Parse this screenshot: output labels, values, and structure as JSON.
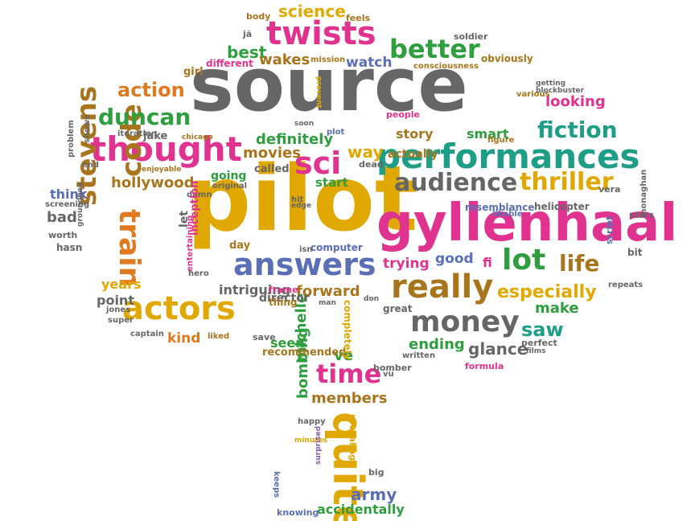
{
  "palette": {
    "gray": "#666666",
    "pink": "#e0338f",
    "gold": "#e0a800",
    "green": "#2e9e3e",
    "teal": "#1f9e87",
    "blue": "#5a6fb5",
    "orange": "#e07a1f",
    "brown": "#a8751c",
    "red": "#d94a30",
    "purple": "#8a5aab",
    "lightgray": "#999999"
  },
  "words": [
    {
      "text": "source",
      "color": "gray"
    },
    {
      "text": "pilot",
      "color": "gold"
    },
    {
      "text": "gyllenhaal",
      "color": "pink"
    },
    {
      "text": "performances",
      "color": "teal"
    },
    {
      "text": "thought",
      "color": "pink"
    },
    {
      "text": "twists",
      "color": "pink"
    },
    {
      "text": "answers",
      "color": "blue"
    },
    {
      "text": "actors",
      "color": "gold"
    },
    {
      "text": "really",
      "color": "brown"
    },
    {
      "text": "money",
      "color": "gray"
    },
    {
      "text": "audience",
      "color": "gray"
    },
    {
      "text": "thriller",
      "color": "gold"
    },
    {
      "text": "better",
      "color": "green"
    },
    {
      "text": "fiction",
      "color": "teal"
    },
    {
      "text": "sci",
      "color": "pink"
    },
    {
      "text": "lot",
      "color": "green"
    },
    {
      "text": "life",
      "color": "brown"
    },
    {
      "text": "quite",
      "color": "gold"
    },
    {
      "text": "time",
      "color": "pink"
    },
    {
      "text": "code",
      "color": "brown"
    },
    {
      "text": "train",
      "color": "orange"
    },
    {
      "text": "stevens",
      "color": "brown"
    },
    {
      "text": "duncan",
      "color": "green"
    },
    {
      "text": "action",
      "color": "orange"
    },
    {
      "text": "especially",
      "color": "gold"
    },
    {
      "text": "hollywood",
      "color": "brown"
    },
    {
      "text": "science",
      "color": "gold"
    },
    {
      "text": "saw",
      "color": "teal"
    },
    {
      "text": "glance",
      "color": "gray"
    },
    {
      "text": "ending",
      "color": "green"
    },
    {
      "text": "forward",
      "color": "brown"
    },
    {
      "text": "intriguing",
      "color": "gray"
    },
    {
      "text": "definitely",
      "color": "green"
    },
    {
      "text": "way",
      "color": "gold"
    },
    {
      "text": "movies",
      "color": "brown"
    },
    {
      "text": "make",
      "color": "green"
    },
    {
      "text": "michelle",
      "color": "green"
    },
    {
      "text": "bombing",
      "color": "green"
    },
    {
      "text": "members",
      "color": "brown"
    },
    {
      "text": "army",
      "color": "blue"
    },
    {
      "text": "accidentally",
      "color": "green"
    },
    {
      "text": "kind",
      "color": "orange"
    },
    {
      "text": "trying",
      "color": "pink"
    },
    {
      "text": "good",
      "color": "blue"
    },
    {
      "text": "fi",
      "color": "pink"
    },
    {
      "text": "looking",
      "color": "pink"
    },
    {
      "text": "smart",
      "color": "green"
    },
    {
      "text": "story",
      "color": "brown"
    },
    {
      "text": "best",
      "color": "green"
    },
    {
      "text": "wakes",
      "color": "brown"
    },
    {
      "text": "watch",
      "color": "blue"
    },
    {
      "text": "going",
      "color": "green"
    },
    {
      "text": "start",
      "color": "green"
    },
    {
      "text": "think",
      "color": "blue"
    },
    {
      "text": "bad",
      "color": "gray"
    },
    {
      "text": "years",
      "color": "gold"
    },
    {
      "text": "point",
      "color": "gray"
    },
    {
      "text": "seen",
      "color": "green"
    },
    {
      "text": "ve",
      "color": "green"
    },
    {
      "text": "recommended",
      "color": "brown"
    },
    {
      "text": "director",
      "color": "gray"
    },
    {
      "text": "day",
      "color": "brown"
    },
    {
      "text": "girl",
      "color": "brown"
    },
    {
      "text": "different",
      "color": "pink"
    },
    {
      "text": "mission",
      "color": "brown"
    },
    {
      "text": "body",
      "color": "brown"
    },
    {
      "text": "feels",
      "color": "brown"
    },
    {
      "text": "jã",
      "color": "gray"
    },
    {
      "text": "soldier",
      "color": "gray"
    },
    {
      "text": "obviously",
      "color": "brown"
    },
    {
      "text": "consciousness",
      "color": "brown"
    },
    {
      "text": "prevent",
      "color": "gold"
    },
    {
      "text": "getting",
      "color": "gray"
    },
    {
      "text": "various",
      "color": "brown"
    },
    {
      "text": "blockbuster",
      "color": "gray"
    },
    {
      "text": "people",
      "color": "pink"
    },
    {
      "text": "figure",
      "color": "brown"
    },
    {
      "text": "plot",
      "color": "blue"
    },
    {
      "text": "soon",
      "color": "gray"
    },
    {
      "text": "actually",
      "color": "brown"
    },
    {
      "text": "iteration",
      "color": "gray"
    },
    {
      "text": "jake",
      "color": "gray"
    },
    {
      "text": "chicago",
      "color": "brown"
    },
    {
      "text": "shows",
      "color": "gray"
    },
    {
      "text": "problem",
      "color": "gray"
    },
    {
      "text": "end",
      "color": "gray"
    },
    {
      "text": "enjoyable",
      "color": "brown"
    },
    {
      "text": "called",
      "color": "gray"
    },
    {
      "text": "dead",
      "color": "gray"
    },
    {
      "text": "original",
      "color": "gray"
    },
    {
      "text": "damn",
      "color": "gray"
    },
    {
      "text": "screening",
      "color": "gray"
    },
    {
      "text": "groundhog",
      "color": "gray"
    },
    {
      "text": "worth",
      "color": "gray"
    },
    {
      "text": "hasn",
      "color": "gray"
    },
    {
      "text": "let",
      "color": "gray"
    },
    {
      "text": "inception",
      "color": "pink"
    },
    {
      "text": "entertaining",
      "color": "pink"
    },
    {
      "text": "hero",
      "color": "gray"
    },
    {
      "text": "frame",
      "color": "pink"
    },
    {
      "text": "thing",
      "color": "brown"
    },
    {
      "text": "isn",
      "color": "gray"
    },
    {
      "text": "computer",
      "color": "blue"
    },
    {
      "text": "edge",
      "color": "gray"
    },
    {
      "text": "hit",
      "color": "gray"
    },
    {
      "text": "resemblance",
      "color": "blue"
    },
    {
      "text": "likable",
      "color": "blue"
    },
    {
      "text": "helicopter",
      "color": "gray"
    },
    {
      "text": "vera",
      "color": "gray"
    },
    {
      "text": "stars",
      "color": "gray"
    },
    {
      "text": "monaghan",
      "color": "gray"
    },
    {
      "text": "bit",
      "color": "gray"
    },
    {
      "text": "script",
      "color": "blue"
    },
    {
      "text": "repeats",
      "color": "gray"
    },
    {
      "text": "great",
      "color": "gray"
    },
    {
      "text": "don",
      "color": "gray"
    },
    {
      "text": "completely",
      "color": "gold"
    },
    {
      "text": "man",
      "color": "gray"
    },
    {
      "text": "jones",
      "color": "gray"
    },
    {
      "text": "super",
      "color": "gray"
    },
    {
      "text": "captain",
      "color": "gray"
    },
    {
      "text": "liked",
      "color": "brown"
    },
    {
      "text": "save",
      "color": "gray"
    },
    {
      "text": "perfect",
      "color": "gray"
    },
    {
      "text": "films",
      "color": "gray"
    },
    {
      "text": "written",
      "color": "gray"
    },
    {
      "text": "formula",
      "color": "pink"
    },
    {
      "text": "bomber",
      "color": "gray"
    },
    {
      "text": "vu",
      "color": "gray"
    },
    {
      "text": "happy",
      "color": "gray"
    },
    {
      "text": "revealing",
      "color": "gold"
    },
    {
      "text": "minutes",
      "color": "gold"
    },
    {
      "text": "keeps",
      "color": "blue"
    },
    {
      "text": "surprised",
      "color": "purple"
    },
    {
      "text": "knowing",
      "color": "blue"
    },
    {
      "text": "big",
      "color": "gray"
    }
  ]
}
